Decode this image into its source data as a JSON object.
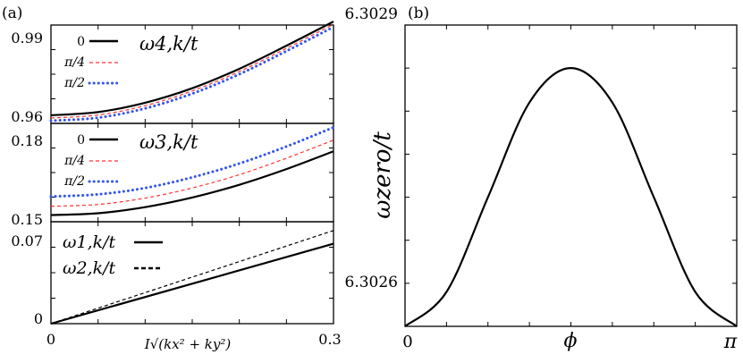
{
  "chart_data": [
    {
      "type": "line",
      "panel_label": "(a)",
      "title": "ω4,k/t",
      "xlim": [
        0,
        0.3
      ],
      "ylim": [
        0.96,
        1.0
      ],
      "y_ticks": [
        "0.99",
        "0.96"
      ],
      "legend_position": "top-left",
      "x": [
        0,
        0.05,
        0.1,
        0.15,
        0.2,
        0.25,
        0.3
      ],
      "series": [
        {
          "name": "0",
          "style": "solid",
          "color": "#000000",
          "values": [
            0.9633,
            0.9646,
            0.9684,
            0.9743,
            0.9822,
            0.9916,
            1.0014
          ]
        },
        {
          "name": "π/4",
          "style": "dashed",
          "color": "#ff3333",
          "values": [
            0.9622,
            0.9634,
            0.9672,
            0.9732,
            0.9811,
            0.9905,
            1.0003
          ]
        },
        {
          "name": "π/2",
          "style": "dotted",
          "color": "#3355ee",
          "values": [
            0.9611,
            0.9623,
            0.9661,
            0.9721,
            0.98,
            0.9894,
            0.9992
          ]
        }
      ]
    },
    {
      "type": "line",
      "title": "ω3,k/t",
      "xlim": [
        0,
        0.3
      ],
      "ylim": [
        0.148,
        0.185
      ],
      "y_ticks": [
        "0.18",
        "0.15"
      ],
      "legend_position": "top-left",
      "x": [
        0,
        0.05,
        0.1,
        0.15,
        0.2,
        0.25,
        0.3
      ],
      "series": [
        {
          "name": "0",
          "style": "solid",
          "color": "#000000",
          "values": [
            0.1505,
            0.1512,
            0.1535,
            0.1571,
            0.1619,
            0.1678,
            0.1745
          ]
        },
        {
          "name": "π/4",
          "style": "dashed",
          "color": "#ff3333",
          "values": [
            0.1538,
            0.1545,
            0.1569,
            0.1607,
            0.1657,
            0.1719,
            0.1787
          ]
        },
        {
          "name": "π/2",
          "style": "dotted",
          "color": "#3355ee",
          "values": [
            0.1575,
            0.1583,
            0.1607,
            0.1647,
            0.1699,
            0.1763,
            0.1835
          ]
        }
      ]
    },
    {
      "type": "line",
      "xlabel": "I√(kx² + ky²)",
      "xlim": [
        0,
        0.3
      ],
      "ylim": [
        0,
        0.082
      ],
      "y_ticks": [
        "0.07",
        "0"
      ],
      "x_ticks": [
        "0",
        "0.3"
      ],
      "legend_position": "top-left",
      "x": [
        0,
        0.3
      ],
      "series": [
        {
          "name": "ω1,k/t",
          "style": "solid",
          "color": "#000000",
          "values": [
            0,
            0.0643
          ]
        },
        {
          "name": "ω2,k/t",
          "style": "dashed",
          "color": "#000000",
          "values": [
            0,
            0.0749
          ]
        }
      ]
    },
    {
      "type": "line",
      "panel_label": "(b)",
      "xlabel": "ϕ",
      "ylabel": "ωzero/t",
      "xlim": [
        0,
        3.1416
      ],
      "ylim": [
        6.30255,
        6.3029
      ],
      "x_ticks": [
        "0",
        "π"
      ],
      "y_ticks": [
        "6.3029",
        "6.3026"
      ],
      "x": [
        0,
        0.3927,
        0.7854,
        1.1781,
        1.5708,
        1.9635,
        2.3562,
        2.7489,
        3.1416
      ],
      "series": [
        {
          "name": "ωzero/t",
          "style": "solid",
          "color": "#000000",
          "values": [
            6.30255,
            6.30259,
            6.3027,
            6.30281,
            6.30285,
            6.30281,
            6.3027,
            6.30259,
            6.30255
          ]
        }
      ]
    }
  ]
}
